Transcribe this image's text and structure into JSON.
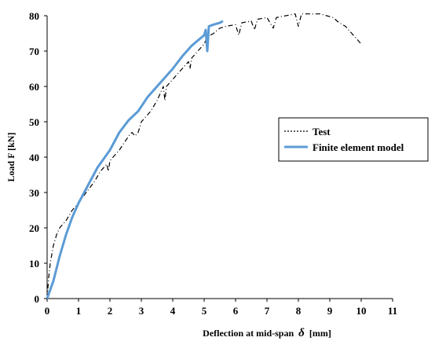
{
  "chart_data": {
    "type": "line",
    "title": "",
    "xlabel": "Deflection at mid-span",
    "xlabel_symbol": "δ",
    "xlabel_unit": "[mm]",
    "ylabel": "Load F [kN]",
    "xlim": [
      0,
      11
    ],
    "ylim": [
      0,
      80
    ],
    "xticks": [
      "0",
      "1",
      "2",
      "3",
      "4",
      "5",
      "6",
      "7",
      "8",
      "9",
      "10",
      "11"
    ],
    "yticks": [
      "0",
      "10",
      "20",
      "30",
      "40",
      "50",
      "60",
      "70",
      "80"
    ],
    "grid": false,
    "legend_position": "right",
    "series": [
      {
        "name": "Test",
        "style": "dash-dot",
        "color": "#000000",
        "points": [
          [
            0,
            0
          ],
          [
            0.05,
            6
          ],
          [
            0.1,
            10
          ],
          [
            0.2,
            15
          ],
          [
            0.3,
            18
          ],
          [
            0.4,
            20
          ],
          [
            0.6,
            22
          ],
          [
            0.8,
            25
          ],
          [
            1.0,
            27
          ],
          [
            1.2,
            29.5
          ],
          [
            1.5,
            33
          ],
          [
            1.7,
            36
          ],
          [
            1.9,
            38
          ],
          [
            1.95,
            36
          ],
          [
            2.0,
            39
          ],
          [
            2.3,
            42
          ],
          [
            2.6,
            46
          ],
          [
            2.7,
            47
          ],
          [
            2.8,
            46
          ],
          [
            2.9,
            47
          ],
          [
            3.0,
            50
          ],
          [
            3.3,
            53
          ],
          [
            3.5,
            56
          ],
          [
            3.6,
            58
          ],
          [
            3.7,
            60
          ],
          [
            3.75,
            56
          ],
          [
            3.8,
            60
          ],
          [
            4.0,
            62
          ],
          [
            4.3,
            65
          ],
          [
            4.5,
            67
          ],
          [
            4.55,
            65
          ],
          [
            4.6,
            68
          ],
          [
            4.8,
            70
          ],
          [
            5.0,
            72
          ],
          [
            5.1,
            74
          ],
          [
            5.3,
            75
          ],
          [
            5.5,
            76.5
          ],
          [
            5.7,
            77
          ],
          [
            6.0,
            77.5
          ],
          [
            6.1,
            74.5
          ],
          [
            6.2,
            78
          ],
          [
            6.5,
            78.5
          ],
          [
            6.6,
            76
          ],
          [
            6.7,
            79
          ],
          [
            7.0,
            79.5
          ],
          [
            7.2,
            76.5
          ],
          [
            7.3,
            79.5
          ],
          [
            7.6,
            80
          ],
          [
            7.9,
            80.5
          ],
          [
            8.0,
            77
          ],
          [
            8.1,
            80.5
          ],
          [
            8.4,
            80.5
          ],
          [
            8.7,
            80.5
          ],
          [
            8.9,
            80
          ],
          [
            9.1,
            79.5
          ],
          [
            9.3,
            78
          ],
          [
            9.5,
            77
          ],
          [
            9.7,
            75
          ],
          [
            9.9,
            73
          ],
          [
            10.0,
            72
          ]
        ]
      },
      {
        "name": "Finite element model",
        "style": "solid",
        "color": "#5B9BD5",
        "points": [
          [
            0,
            0
          ],
          [
            0.2,
            5
          ],
          [
            0.4,
            12
          ],
          [
            0.6,
            18
          ],
          [
            0.8,
            23
          ],
          [
            1.0,
            27
          ],
          [
            1.3,
            32
          ],
          [
            1.6,
            37
          ],
          [
            2.0,
            42
          ],
          [
            2.3,
            47
          ],
          [
            2.6,
            50.5
          ],
          [
            2.9,
            53
          ],
          [
            3.2,
            57
          ],
          [
            3.5,
            60
          ],
          [
            3.8,
            63
          ],
          [
            4.0,
            65
          ],
          [
            4.3,
            68.5
          ],
          [
            4.6,
            71.5
          ],
          [
            4.8,
            73
          ],
          [
            5.0,
            74.5
          ],
          [
            5.05,
            76
          ],
          [
            5.1,
            70
          ],
          [
            5.15,
            77
          ],
          [
            5.3,
            77.5
          ],
          [
            5.5,
            78
          ],
          [
            5.6,
            78.5
          ]
        ]
      }
    ]
  }
}
